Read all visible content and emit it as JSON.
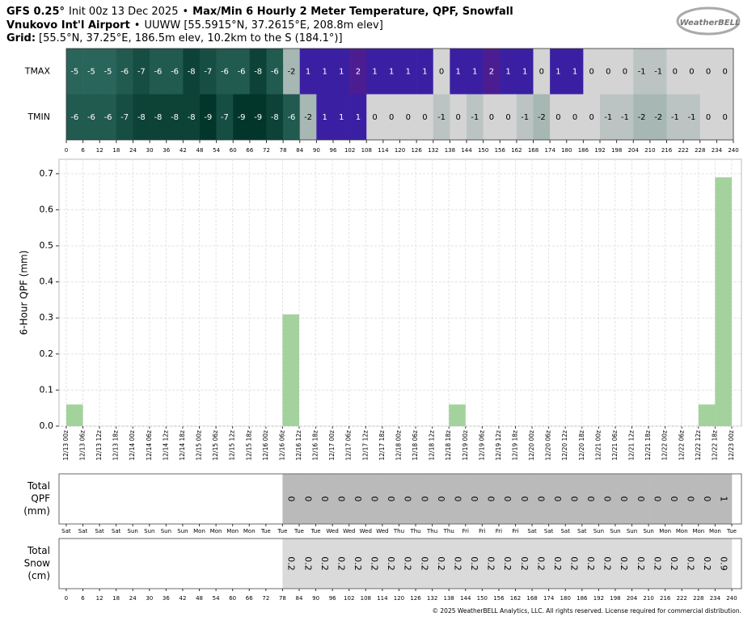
{
  "header": {
    "model": "GFS 0.25°",
    "init": "Init 00z 13 Dec 2025",
    "separator": "•",
    "product": "Max/Min 6 Hourly 2 Meter Temperature,  QPF,  Snowfall",
    "station": "Vnukovo Int'l Airport",
    "station_info": "UUWW [55.5915°N, 37.2615°E, 208.8m elev]",
    "grid_label": "Grid:",
    "grid_info": "[55.5°N, 37.25°E, 186.5m elev, 10.2km to the S (184.1°)]"
  },
  "logo": "WeatherBELL",
  "footer": "© 2025 WeatherBELL Analytics, LLC. All rights reserved. License required for commercial distribution.",
  "chart_data": [
    {
      "type": "heatmap",
      "rows": [
        {
          "name": "TMAX",
          "values": [
            -5,
            -5,
            -5,
            -6,
            -7,
            -6,
            -6,
            -8,
            -7,
            -6,
            -6,
            -8,
            -6,
            -2,
            1,
            1,
            1,
            2,
            1,
            1,
            1,
            1,
            0,
            1,
            1,
            2,
            1,
            1,
            0,
            1,
            1,
            0,
            0,
            0,
            -1,
            -1,
            0,
            0,
            0,
            0
          ]
        },
        {
          "name": "TMIN",
          "values": [
            -6,
            -6,
            -6,
            -7,
            -8,
            -8,
            -8,
            -8,
            -9,
            -7,
            -9,
            -9,
            -8,
            -6,
            -2,
            1,
            1,
            1,
            0,
            0,
            0,
            0,
            -1,
            0,
            -1,
            0,
            0,
            -1,
            -2,
            0,
            0,
            0,
            -1,
            -1,
            -2,
            -2,
            -1,
            -1,
            0,
            0
          ]
        }
      ],
      "xlim": [
        0,
        240
      ],
      "xticks": [
        0,
        6,
        12,
        18,
        24,
        30,
        36,
        42,
        48,
        54,
        60,
        66,
        72,
        78,
        84,
        90,
        96,
        102,
        108,
        114,
        120,
        126,
        132,
        138,
        144,
        150,
        156,
        162,
        168,
        174,
        180,
        186,
        192,
        198,
        204,
        210,
        216,
        222,
        228,
        234,
        240
      ]
    },
    {
      "type": "histogram",
      "ylabel": "6-Hour QPF (mm)",
      "color": "#a3d29c",
      "grid": true,
      "bins": [
        0,
        6,
        12,
        18,
        24,
        30,
        36,
        42,
        48,
        54,
        60,
        66,
        72,
        78,
        84,
        90,
        96,
        102,
        108,
        114,
        120,
        126,
        132,
        138,
        144,
        150,
        156,
        162,
        168,
        174,
        180,
        186,
        192,
        198,
        204,
        210,
        216,
        222,
        228,
        234,
        240
      ],
      "values": [
        0.06,
        0,
        0,
        0,
        0,
        0,
        0,
        0,
        0,
        0,
        0,
        0,
        0,
        0.31,
        0,
        0,
        0,
        0,
        0,
        0,
        0,
        0,
        0,
        0.06,
        0,
        0,
        0,
        0,
        0,
        0,
        0,
        0,
        0,
        0,
        0,
        0,
        0,
        0,
        0.06,
        0.69
      ],
      "xlim": [
        -2.6,
        243.5
      ],
      "ylim": [
        0,
        0.74
      ],
      "yticks": [
        {
          "value": 0,
          "label": "0.0"
        },
        0.1,
        0.2,
        0.3,
        0.4,
        0.5,
        0.6,
        0.7
      ],
      "xticks": [
        {
          "value": 0,
          "label": "12/13 00z"
        },
        {
          "value": 6,
          "label": "12/13 06z"
        },
        {
          "value": 12,
          "label": "12/13 12z"
        },
        {
          "value": 18,
          "label": "12/13 18z"
        },
        {
          "value": 24,
          "label": "12/14 00z"
        },
        {
          "value": 30,
          "label": "12/14 06z"
        },
        {
          "value": 36,
          "label": "12/14 12z"
        },
        {
          "value": 42,
          "label": "12/14 18z"
        },
        {
          "value": 48,
          "label": "12/15 00z"
        },
        {
          "value": 54,
          "label": "12/15 06z"
        },
        {
          "value": 60,
          "label": "12/15 12z"
        },
        {
          "value": 66,
          "label": "12/15 18z"
        },
        {
          "value": 72,
          "label": "12/16 00z"
        },
        {
          "value": 78,
          "label": "12/16 06z"
        },
        {
          "value": 84,
          "label": "12/16 12z"
        },
        {
          "value": 90,
          "label": "12/16 18z"
        },
        {
          "value": 96,
          "label": "12/17 00z"
        },
        {
          "value": 102,
          "label": "12/17 06z"
        },
        {
          "value": 108,
          "label": "12/17 12z"
        },
        {
          "value": 114,
          "label": "12/17 18z"
        },
        {
          "value": 120,
          "label": "12/18 00z"
        },
        {
          "value": 126,
          "label": "12/18 06z"
        },
        {
          "value": 132,
          "label": "12/18 12z"
        },
        {
          "value": 138,
          "label": "12/18 18z"
        },
        {
          "value": 144,
          "label": "12/19 00z"
        },
        {
          "value": 150,
          "label": "12/19 06z"
        },
        {
          "value": 156,
          "label": "12/19 12z"
        },
        {
          "value": 162,
          "label": "12/19 18z"
        },
        {
          "value": 168,
          "label": "12/20 00z"
        },
        {
          "value": 174,
          "label": "12/20 06z"
        },
        {
          "value": 180,
          "label": "12/20 12z"
        },
        {
          "value": 186,
          "label": "12/20 18z"
        },
        {
          "value": 192,
          "label": "12/21 00z"
        },
        {
          "value": 198,
          "label": "12/21 06z"
        },
        {
          "value": 204,
          "label": "12/21 12z"
        },
        {
          "value": 210,
          "label": "12/21 18z"
        },
        {
          "value": 216,
          "label": "12/22 00z"
        },
        {
          "value": 222,
          "label": "12/22 06z"
        },
        {
          "value": 228,
          "label": "12/22 12z"
        },
        {
          "value": 234,
          "label": "12/22 18z"
        },
        {
          "value": 240,
          "label": "12/23 00z"
        }
      ]
    },
    {
      "type": "strip",
      "label": [
        "Total",
        "QPF",
        "(mm)"
      ],
      "color": "#bababa",
      "bins": [
        0,
        6,
        12,
        18,
        24,
        30,
        36,
        42,
        48,
        54,
        60,
        66,
        72,
        78,
        84,
        90,
        96,
        102,
        108,
        114,
        120,
        126,
        132,
        138,
        144,
        150,
        156,
        162,
        168,
        174,
        180,
        186,
        192,
        198,
        204,
        210,
        216,
        222,
        228,
        234,
        240
      ],
      "values": [
        null,
        null,
        null,
        null,
        null,
        null,
        null,
        null,
        null,
        null,
        null,
        null,
        null,
        0,
        0,
        0,
        0,
        0,
        0,
        0,
        0,
        0,
        0,
        0,
        0,
        0,
        0,
        0,
        0,
        0,
        0,
        0,
        0,
        0,
        0,
        0,
        0,
        0,
        0,
        1
      ],
      "xlim": [
        -2.6,
        243.5
      ],
      "xticks": [
        {
          "value": 0,
          "label": "Sat"
        },
        {
          "value": 6,
          "label": "Sat"
        },
        {
          "value": 12,
          "label": "Sat"
        },
        {
          "value": 18,
          "label": "Sat"
        },
        {
          "value": 24,
          "label": "Sun"
        },
        {
          "value": 30,
          "label": "Sun"
        },
        {
          "value": 36,
          "label": "Sun"
        },
        {
          "value": 42,
          "label": "Sun"
        },
        {
          "value": 48,
          "label": "Mon"
        },
        {
          "value": 54,
          "label": "Mon"
        },
        {
          "value": 60,
          "label": "Mon"
        },
        {
          "value": 66,
          "label": "Mon"
        },
        {
          "value": 72,
          "label": "Tue"
        },
        {
          "value": 78,
          "label": "Tue"
        },
        {
          "value": 84,
          "label": "Tue"
        },
        {
          "value": 90,
          "label": "Tue"
        },
        {
          "value": 96,
          "label": "Wed"
        },
        {
          "value": 102,
          "label": "Wed"
        },
        {
          "value": 108,
          "label": "Wed"
        },
        {
          "value": 114,
          "label": "Wed"
        },
        {
          "value": 120,
          "label": "Thu"
        },
        {
          "value": 126,
          "label": "Thu"
        },
        {
          "value": 132,
          "label": "Thu"
        },
        {
          "value": 138,
          "label": "Thu"
        },
        {
          "value": 144,
          "label": "Fri"
        },
        {
          "value": 150,
          "label": "Fri"
        },
        {
          "value": 156,
          "label": "Fri"
        },
        {
          "value": 162,
          "label": "Fri"
        },
        {
          "value": 168,
          "label": "Sat"
        },
        {
          "value": 174,
          "label": "Sat"
        },
        {
          "value": 180,
          "label": "Sat"
        },
        {
          "value": 186,
          "label": "Sat"
        },
        {
          "value": 192,
          "label": "Sun"
        },
        {
          "value": 198,
          "label": "Sun"
        },
        {
          "value": 204,
          "label": "Sun"
        },
        {
          "value": 210,
          "label": "Sun"
        },
        {
          "value": 216,
          "label": "Mon"
        },
        {
          "value": 222,
          "label": "Mon"
        },
        {
          "value": 228,
          "label": "Mon"
        },
        {
          "value": 234,
          "label": "Mon"
        },
        {
          "value": 240,
          "label": "Tue"
        }
      ]
    },
    {
      "type": "strip",
      "label": [
        "Total",
        "Snow",
        "(cm)"
      ],
      "color": "#dadada",
      "bins": [
        0,
        6,
        12,
        18,
        24,
        30,
        36,
        42,
        48,
        54,
        60,
        66,
        72,
        78,
        84,
        90,
        96,
        102,
        108,
        114,
        120,
        126,
        132,
        138,
        144,
        150,
        156,
        162,
        168,
        174,
        180,
        186,
        192,
        198,
        204,
        210,
        216,
        222,
        228,
        234,
        240
      ],
      "values": [
        null,
        null,
        null,
        null,
        null,
        null,
        null,
        null,
        null,
        null,
        null,
        null,
        null,
        0.2,
        0.2,
        0.2,
        0.2,
        0.2,
        0.2,
        0.2,
        0.2,
        0.2,
        0.2,
        0.2,
        0.2,
        0.2,
        0.2,
        0.2,
        0.2,
        0.2,
        0.2,
        0.2,
        0.2,
        0.2,
        0.2,
        0.2,
        0.2,
        0.2,
        0.2,
        0.9
      ],
      "xlim": [
        -2.6,
        243.5
      ],
      "xticks": [
        0,
        6,
        12,
        18,
        24,
        30,
        36,
        42,
        48,
        54,
        60,
        66,
        72,
        78,
        84,
        90,
        96,
        102,
        108,
        114,
        120,
        126,
        132,
        138,
        144,
        150,
        156,
        162,
        168,
        174,
        180,
        186,
        192,
        198,
        204,
        210,
        216,
        222,
        228,
        234,
        240
      ]
    }
  ]
}
